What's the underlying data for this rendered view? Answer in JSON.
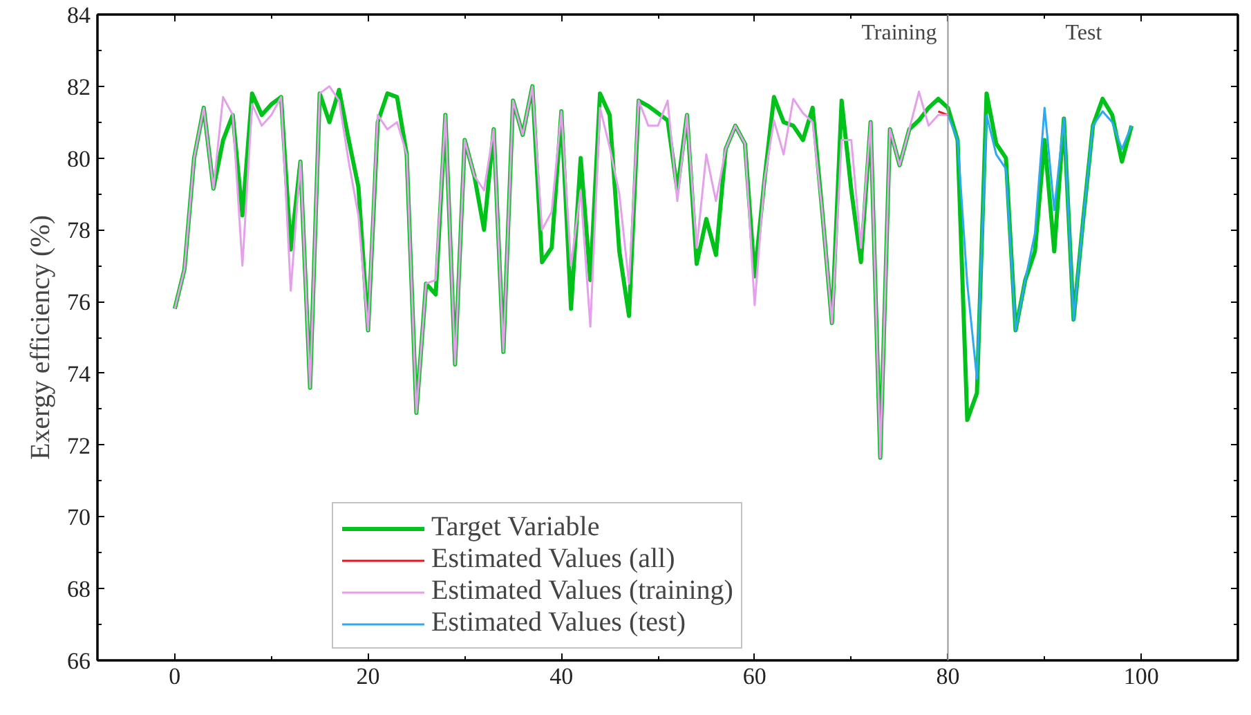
{
  "chart_data": {
    "type": "line",
    "ylabel": "Exergy efficiency (%)",
    "xlim": [
      -8,
      110
    ],
    "ylim": [
      66,
      84
    ],
    "xticks": [
      0,
      20,
      40,
      60,
      80,
      100
    ],
    "yticks": [
      66,
      68,
      70,
      72,
      74,
      76,
      78,
      80,
      82,
      84
    ],
    "grid": false,
    "legend": "bottom left",
    "tick_labels": true,
    "series": [
      {
        "name": "Target Variable",
        "color": "#00c21a",
        "x": [
          0,
          1,
          2,
          3,
          4,
          5,
          6,
          7,
          8,
          9,
          10,
          11,
          12,
          13,
          14,
          15,
          16,
          17,
          18,
          19,
          20,
          21,
          22,
          23,
          24,
          25,
          26,
          27,
          28,
          29,
          30,
          31,
          32,
          33,
          34,
          35,
          36,
          37,
          38,
          39,
          40,
          41,
          42,
          43,
          44,
          45,
          46,
          47,
          48,
          49,
          50,
          51,
          52,
          53,
          54,
          55,
          56,
          57,
          58,
          59,
          60,
          61,
          62,
          63,
          64,
          65,
          66,
          67,
          68,
          69,
          70,
          71,
          72,
          73,
          74,
          75,
          76,
          77,
          78,
          79,
          80,
          81,
          82,
          83,
          84,
          85,
          86,
          87,
          88,
          89,
          90,
          91,
          92,
          93,
          94,
          95,
          96,
          97,
          98,
          99
        ],
        "values": [
          75.8,
          76.9,
          80.0,
          81.4,
          79.15,
          80.5,
          81.2,
          78.4,
          81.8,
          81.2,
          81.5,
          81.7,
          77.45,
          79.9,
          73.6,
          81.8,
          81.0,
          81.9,
          80.5,
          79.2,
          75.2,
          81.0,
          81.8,
          81.7,
          80.1,
          72.9,
          76.5,
          76.2,
          81.2,
          74.25,
          80.5,
          79.5,
          78.0,
          80.8,
          74.6,
          81.6,
          80.65,
          82.0,
          77.1,
          77.5,
          81.3,
          75.8,
          80.0,
          76.6,
          81.8,
          81.2,
          77.4,
          75.6,
          81.6,
          81.45,
          81.25,
          81.05,
          79.1,
          81.2,
          77.05,
          78.3,
          77.3,
          80.25,
          80.9,
          80.4,
          76.7,
          79.35,
          81.7,
          81.0,
          80.9,
          80.5,
          81.4,
          78.5,
          75.4,
          81.6,
          79.1,
          77.1,
          81.0,
          71.65,
          80.8,
          79.8,
          80.8,
          81.05,
          81.4,
          81.65,
          81.4,
          80.5,
          72.7,
          73.45,
          81.8,
          80.4,
          80.0,
          75.2,
          76.6,
          77.4,
          80.5,
          77.4,
          81.1,
          75.5,
          78.3,
          80.9,
          81.65,
          81.2,
          79.9,
          80.9
        ]
      },
      {
        "name": "Estimated Values (all)",
        "color": "#e8141c",
        "x": [
          79,
          80
        ],
        "values": [
          81.3,
          81.2
        ]
      },
      {
        "name": "Estimated Values (training)",
        "color": "#e4a0ea",
        "x": [
          0,
          1,
          2,
          3,
          4,
          5,
          6,
          7,
          8,
          9,
          10,
          11,
          12,
          13,
          14,
          15,
          16,
          17,
          18,
          19,
          20,
          21,
          22,
          23,
          24,
          25,
          26,
          27,
          28,
          29,
          30,
          31,
          32,
          33,
          34,
          35,
          36,
          37,
          38,
          39,
          40,
          41,
          42,
          43,
          44,
          45,
          46,
          47,
          48,
          49,
          50,
          51,
          52,
          53,
          54,
          55,
          56,
          57,
          58,
          59,
          60,
          61,
          62,
          63,
          64,
          65,
          66,
          67,
          68,
          69,
          70,
          71,
          72,
          73,
          74,
          75,
          76,
          77,
          78,
          79,
          80
        ],
        "values": [
          75.8,
          76.9,
          80.0,
          81.4,
          79.15,
          81.7,
          81.2,
          77.0,
          81.5,
          80.9,
          81.2,
          81.7,
          76.3,
          79.9,
          73.6,
          81.8,
          82.0,
          81.6,
          79.9,
          78.4,
          75.2,
          81.2,
          80.8,
          81.0,
          80.1,
          72.9,
          76.5,
          76.6,
          81.2,
          74.25,
          80.5,
          79.5,
          79.1,
          80.8,
          74.6,
          81.6,
          80.65,
          82.0,
          78.0,
          78.5,
          81.3,
          77.0,
          79.1,
          75.3,
          81.4,
          80.3,
          79.0,
          76.5,
          81.6,
          80.9,
          80.9,
          81.6,
          78.8,
          81.2,
          77.5,
          80.1,
          78.8,
          80.25,
          80.9,
          80.4,
          75.9,
          79.35,
          81.05,
          80.1,
          81.65,
          81.25,
          81.0,
          78.5,
          75.4,
          80.5,
          80.5,
          77.5,
          81.0,
          71.65,
          80.8,
          79.8,
          80.8,
          81.85,
          80.9,
          81.2,
          81.2
        ]
      },
      {
        "name": "Estimated Values (test)",
        "color": "#2ea8f0",
        "x": [
          80,
          81,
          82,
          83,
          84,
          85,
          86,
          87,
          88,
          89,
          90,
          91,
          92,
          93,
          94,
          95,
          96,
          97,
          98,
          99
        ],
        "values": [
          81.2,
          80.5,
          76.5,
          73.85,
          81.2,
          80.1,
          79.7,
          75.2,
          76.6,
          77.9,
          81.4,
          78.55,
          81.1,
          75.5,
          78.3,
          80.9,
          81.3,
          81.0,
          80.25,
          80.9
        ]
      }
    ],
    "ref_lines": [
      {
        "axis": "x",
        "value": 80,
        "label": null,
        "color": "#999999"
      }
    ],
    "annotations": [
      "Training",
      "Test"
    ]
  }
}
